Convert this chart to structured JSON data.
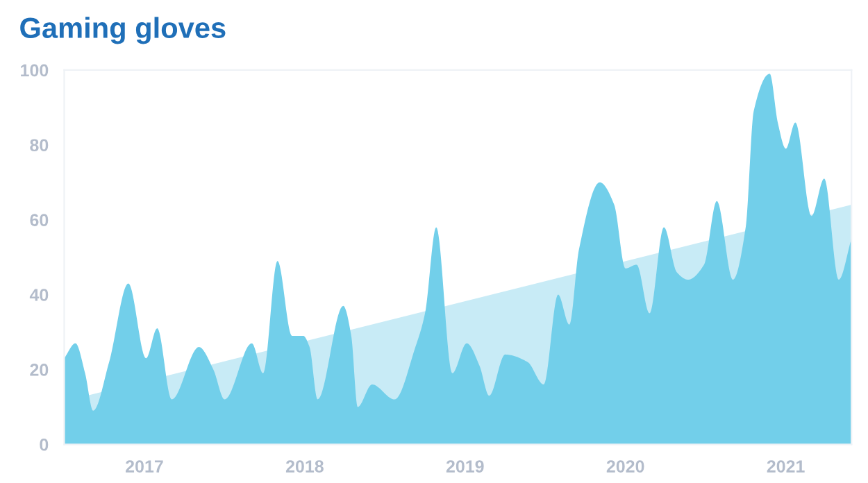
{
  "chart_data": {
    "type": "area",
    "title": "Gaming gloves",
    "xlim": [
      2016.5,
      2021.41
    ],
    "xticks": [
      2017,
      2018,
      2019,
      2020,
      2021
    ],
    "ylim": [
      0,
      100
    ],
    "yticks": [
      0,
      20,
      40,
      60,
      80,
      100
    ],
    "grid": false,
    "legend": false,
    "series": [
      {
        "color": "#c8ebf6",
        "x": [
          2016.64,
          2021.41
        ],
        "values": [
          13,
          64
        ]
      },
      {
        "color": "#72cfea",
        "x": [
          2016.5,
          2016.57,
          2016.63,
          2016.68,
          2016.78,
          2016.9,
          2017.01,
          2017.08,
          2017.17,
          2017.34,
          2017.43,
          2017.5,
          2017.67,
          2017.74,
          2017.83,
          2017.92,
          2017.99,
          2018.03,
          2018.08,
          2018.24,
          2018.29,
          2018.33,
          2018.42,
          2018.56,
          2018.69,
          2018.75,
          2018.82,
          2018.92,
          2019.01,
          2019.09,
          2019.15,
          2019.25,
          2019.39,
          2019.49,
          2019.58,
          2019.65,
          2019.71,
          2019.84,
          2019.93,
          2020.0,
          2020.07,
          2020.15,
          2020.24,
          2020.32,
          2020.39,
          2020.49,
          2020.57,
          2020.67,
          2020.75,
          2020.8,
          2020.9,
          2020.95,
          2021.0,
          2021.06,
          2021.16,
          2021.24,
          2021.33,
          2021.41
        ],
        "values": [
          23,
          27,
          19,
          9,
          22,
          43,
          23,
          31,
          12,
          26,
          20,
          12,
          27,
          19,
          49,
          29,
          29,
          26,
          12,
          37,
          29,
          10,
          16,
          12,
          26,
          35,
          58,
          19,
          27,
          21,
          13,
          24,
          22,
          16,
          40,
          32,
          52,
          70,
          64,
          47,
          48,
          35,
          58,
          46,
          44,
          48,
          65,
          44,
          58,
          89,
          99,
          86,
          79,
          86,
          61,
          71,
          44,
          55
        ]
      }
    ]
  }
}
